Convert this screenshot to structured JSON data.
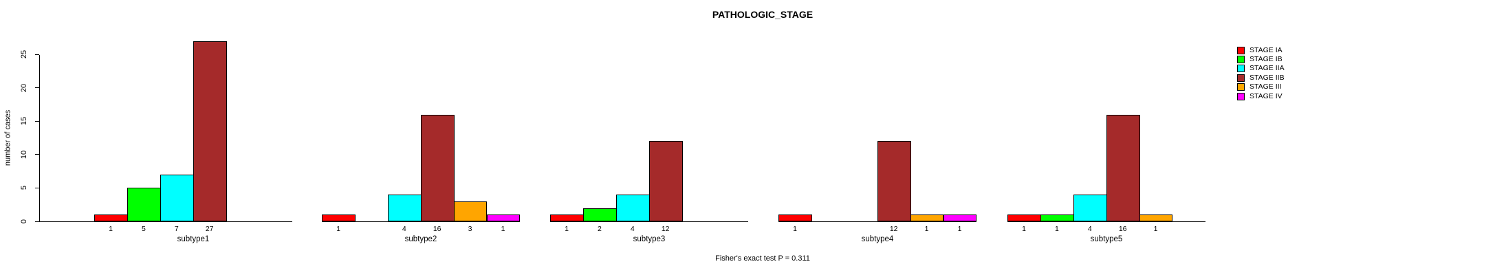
{
  "title": "PATHOLOGIC_STAGE",
  "footer": "Fisher's exact test P = 0.311",
  "chart_data": {
    "type": "bar",
    "title": "PATHOLOGIC_STAGE",
    "ylabel": "number of cases",
    "xlabel": "",
    "yticks": [
      0,
      5,
      10,
      15,
      20,
      25
    ],
    "ylim": [
      0,
      27
    ],
    "grid": false,
    "legend_position": "right",
    "legend": [
      {
        "label": "STAGE IA",
        "color": "#FF0000"
      },
      {
        "label": "STAGE IB",
        "color": "#00FF00"
      },
      {
        "label": "STAGE IIA",
        "color": "#00FFFF"
      },
      {
        "label": "STAGE IIB",
        "color": "#A52A2A"
      },
      {
        "label": "STAGE III",
        "color": "#FFA500"
      },
      {
        "label": "STAGE IV",
        "color": "#FF00FF"
      }
    ],
    "panels": [
      {
        "xlabel": "subtype1",
        "categories": [
          "STAGE IA",
          "STAGE IB",
          "STAGE IIA",
          "STAGE IIB",
          "STAGE III",
          "STAGE IV"
        ],
        "values": [
          1,
          5,
          7,
          27,
          0,
          0
        ]
      },
      {
        "xlabel": "subtype2",
        "categories": [
          "STAGE IA",
          "STAGE IB",
          "STAGE IIA",
          "STAGE IIB",
          "STAGE III",
          "STAGE IV"
        ],
        "values": [
          1,
          0,
          4,
          16,
          3,
          1
        ]
      },
      {
        "xlabel": "subtype3",
        "categories": [
          "STAGE IA",
          "STAGE IB",
          "STAGE IIA",
          "STAGE IIB",
          "STAGE III",
          "STAGE IV"
        ],
        "values": [
          1,
          2,
          4,
          12,
          0,
          0
        ]
      },
      {
        "xlabel": "subtype4",
        "categories": [
          "STAGE IA",
          "STAGE IB",
          "STAGE IIA",
          "STAGE IIB",
          "STAGE III",
          "STAGE IV"
        ],
        "values": [
          1,
          0,
          0,
          12,
          1,
          1
        ]
      },
      {
        "xlabel": "subtype5",
        "categories": [
          "STAGE IA",
          "STAGE IB",
          "STAGE IIA",
          "STAGE IIB",
          "STAGE III",
          "STAGE IV"
        ],
        "values": [
          1,
          1,
          4,
          16,
          1,
          0
        ]
      }
    ],
    "annotation": "Fisher's exact test P = 0.311"
  }
}
